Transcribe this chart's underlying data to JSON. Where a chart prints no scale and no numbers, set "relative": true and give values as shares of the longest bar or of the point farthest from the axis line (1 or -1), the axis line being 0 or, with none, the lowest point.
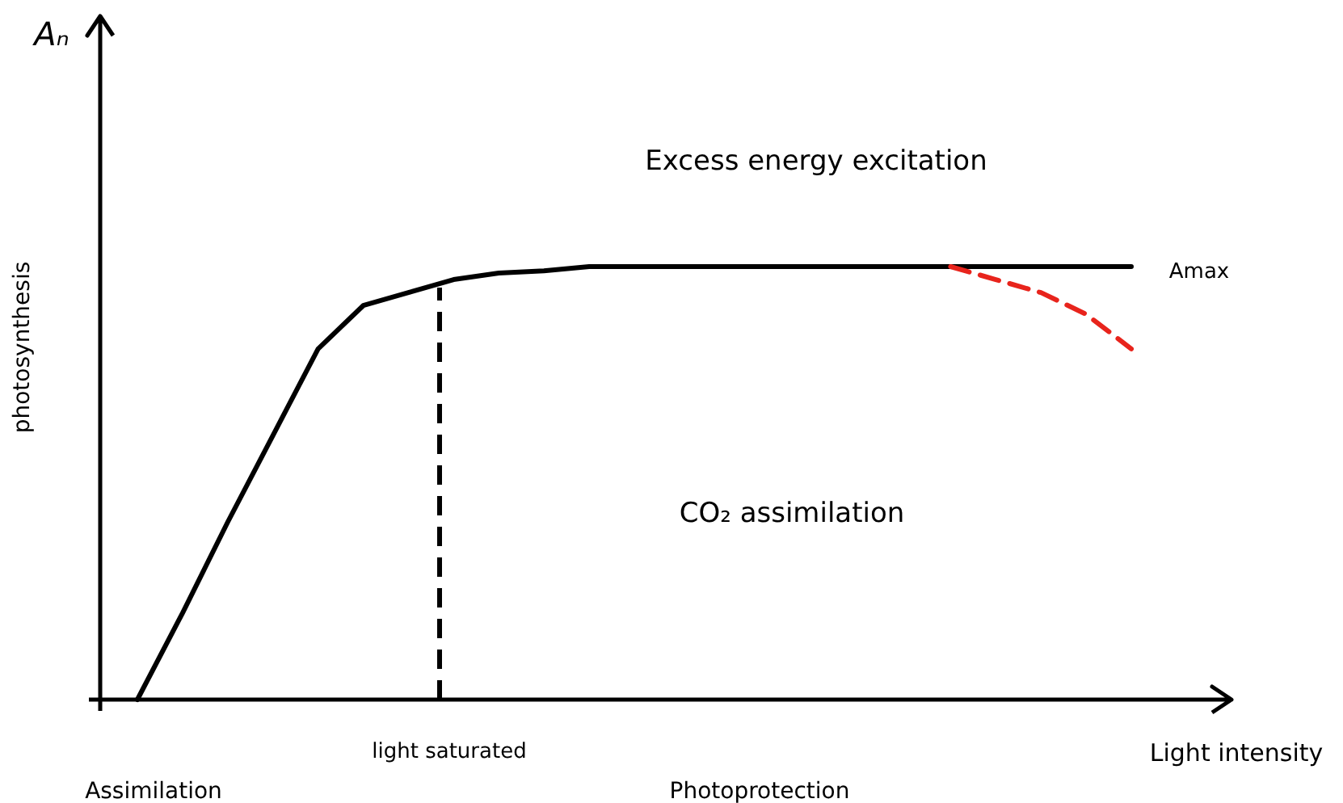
{
  "chart_data": {
    "type": "line",
    "relative": true,
    "xlabel": "Light intensity",
    "ylabel": "photosynthesis",
    "categories": [
      null,
      null,
      null,
      null,
      null,
      null,
      null,
      null,
      null,
      null,
      null,
      null,
      null,
      null,
      null,
      null,
      null,
      null,
      null,
      null,
      null,
      null,
      null
    ],
    "series": [
      {
        "color": "#000000",
        "line_style": "solid",
        "values": [
          0,
          0.2,
          0.41,
          0.61,
          0.81,
          0.91,
          0.94,
          0.97,
          0.985,
          0.99,
          1,
          1,
          1,
          1,
          1,
          1,
          1,
          1,
          1,
          1,
          1,
          1,
          1
        ]
      },
      {
        "color": "#e8241c",
        "line_style": "dashed",
        "values": [
          null,
          null,
          null,
          null,
          null,
          null,
          null,
          null,
          null,
          null,
          null,
          null,
          null,
          null,
          null,
          null,
          null,
          null,
          1,
          0.97,
          0.94,
          0.89,
          0.81
        ]
      }
    ],
    "annotations": [
      "Aₙ",
      "Excess energy excitation",
      "CO₂ assimilation",
      "Amax",
      "light saturated",
      "Assimilation",
      "Photoprotection"
    ],
    "marker": "none"
  }
}
